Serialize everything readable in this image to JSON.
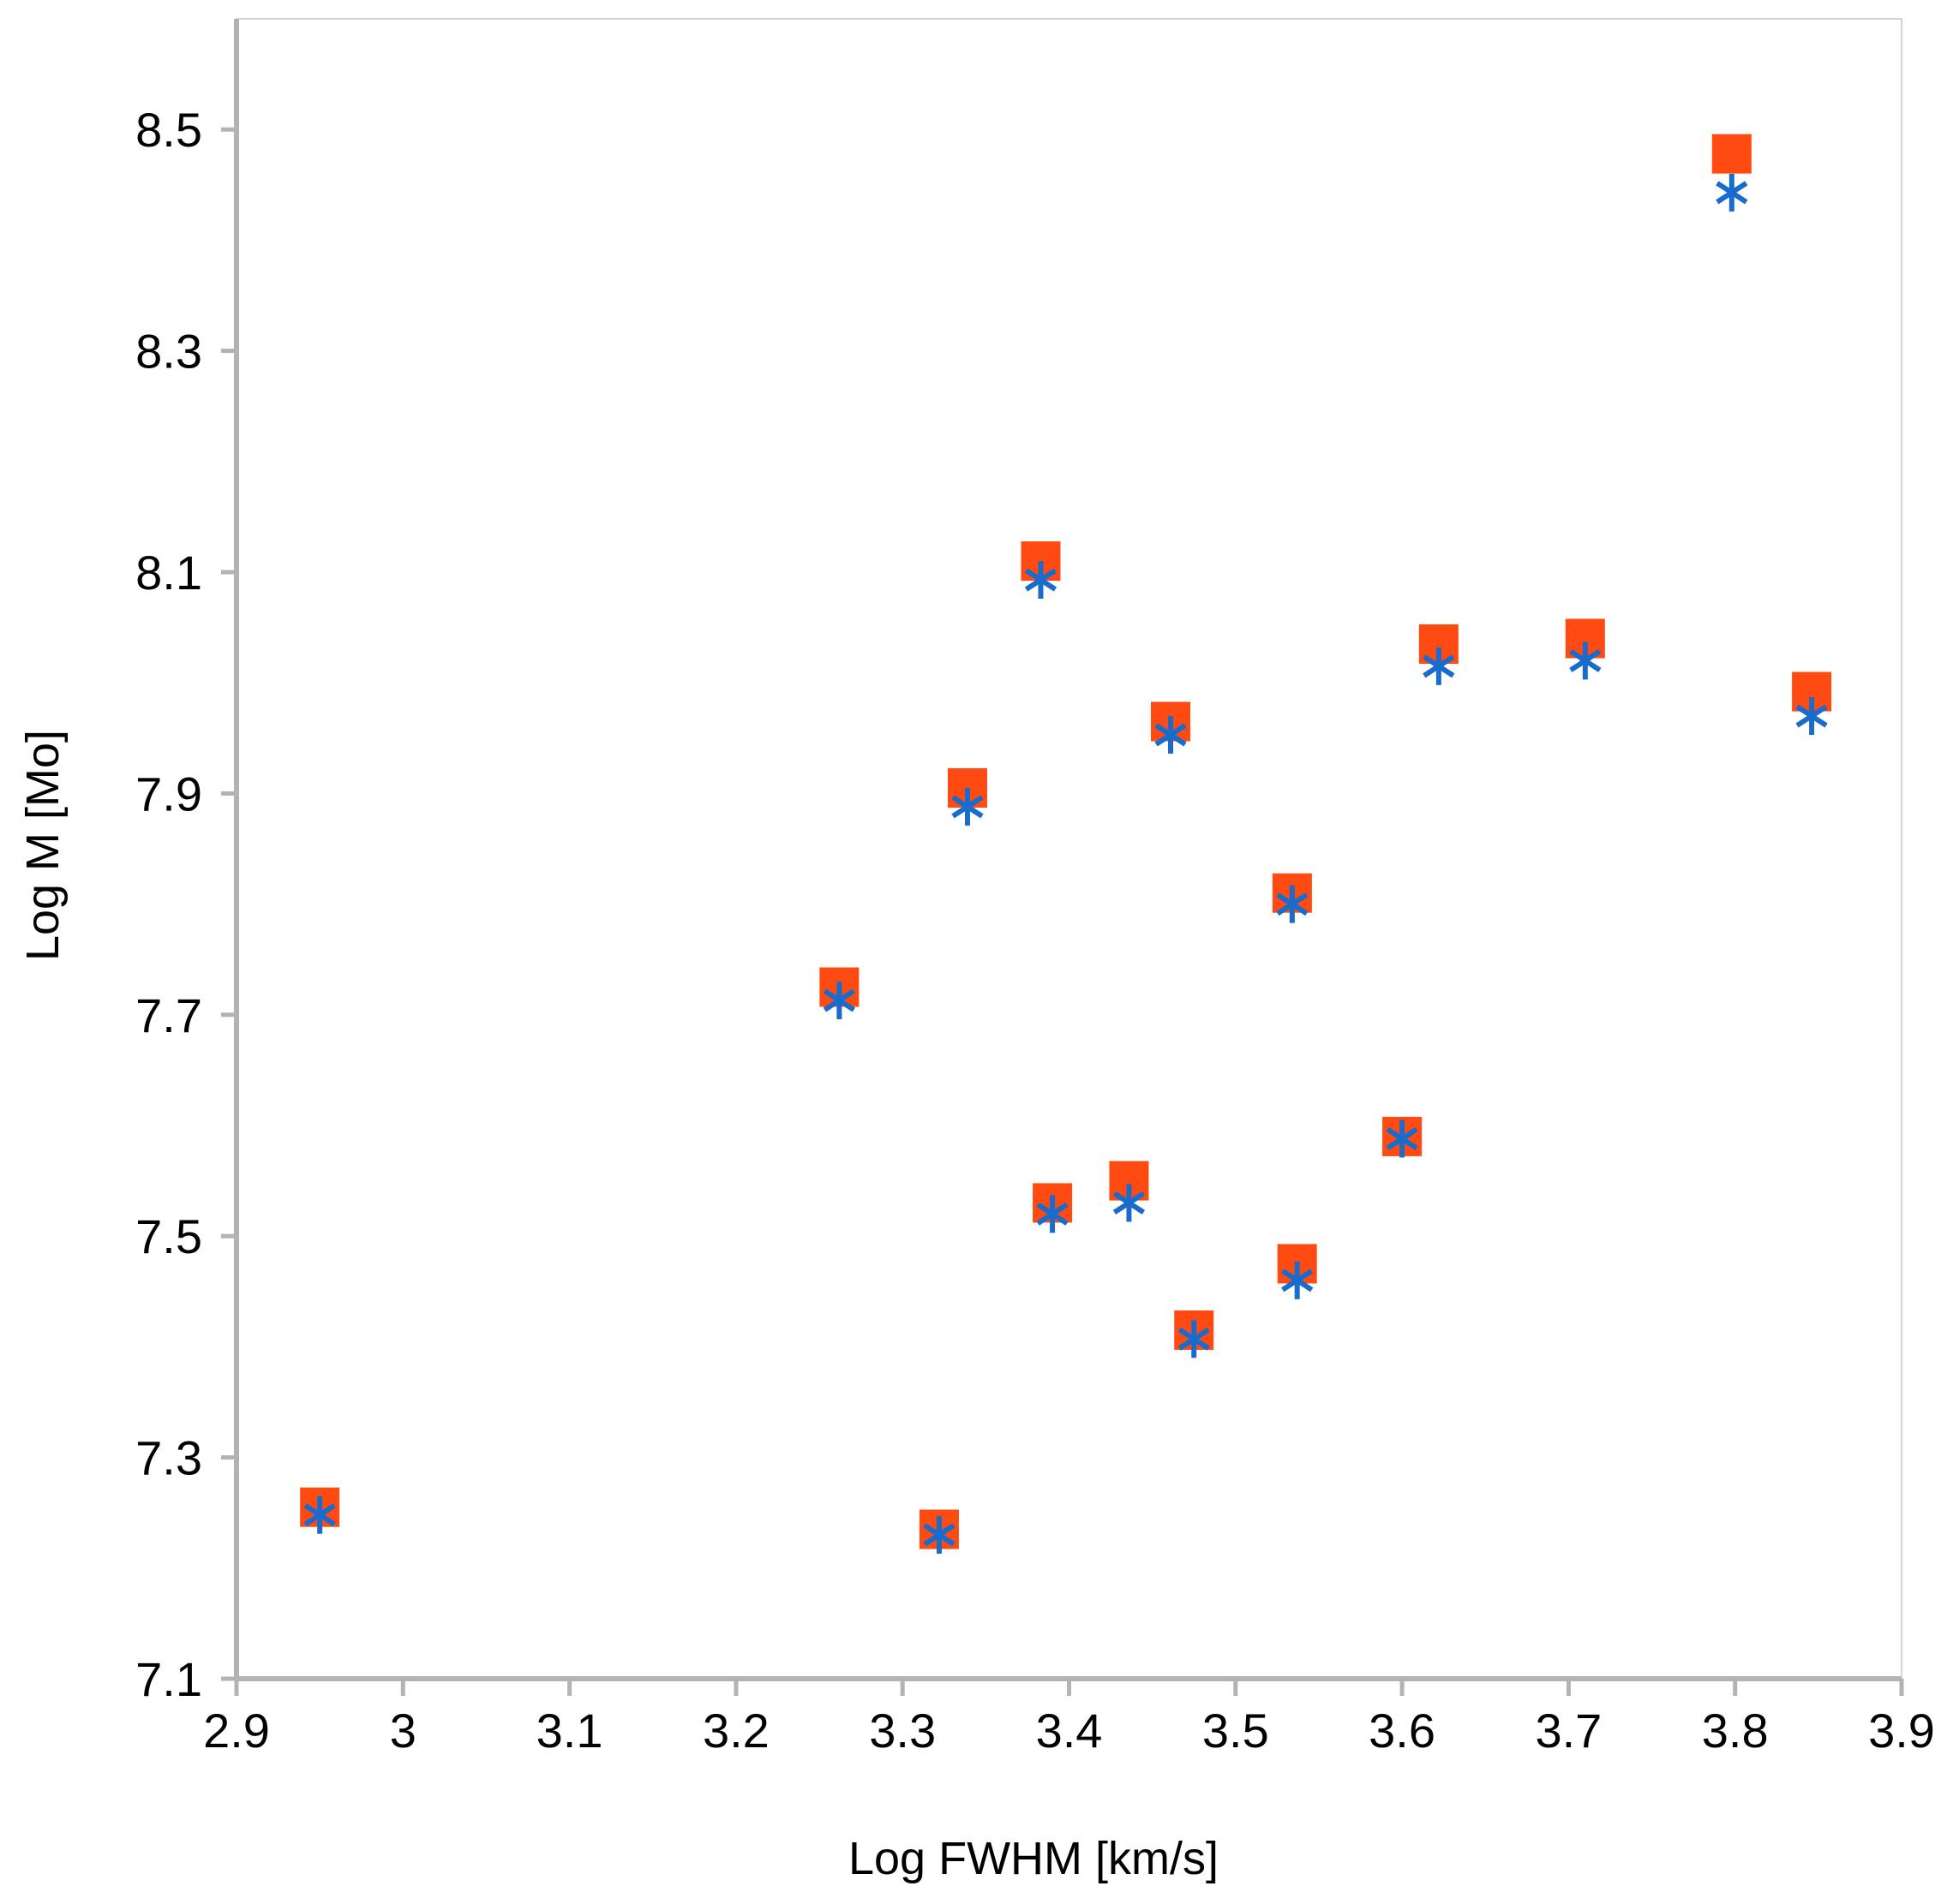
{
  "chart_data": {
    "type": "scatter",
    "title": "",
    "xlabel": "Log FWHM [km/s]",
    "ylabel": "Log M [Mo]",
    "xlim": [
      2.9,
      3.9
    ],
    "ylim": [
      7.1,
      8.6
    ],
    "x_ticks": [
      "2.9",
      "3",
      "3.1",
      "3.2",
      "3.3",
      "3.4",
      "3.5",
      "3.6",
      "3.7",
      "3.8",
      "3.9"
    ],
    "y_ticks": [
      "7.1",
      "7.3",
      "7.5",
      "7.7",
      "7.9",
      "8.1",
      "8.3",
      "8.5"
    ],
    "grid": false,
    "legend": "none",
    "series": [
      {
        "marker": "square",
        "color": "#ff4a12",
        "points": [
          {
            "x": 2.95,
            "y": 7.255
          },
          {
            "x": 3.262,
            "y": 7.725
          },
          {
            "x": 3.322,
            "y": 7.235
          },
          {
            "x": 3.339,
            "y": 7.905
          },
          {
            "x": 3.383,
            "y": 8.11
          },
          {
            "x": 3.39,
            "y": 7.53
          },
          {
            "x": 3.436,
            "y": 7.55
          },
          {
            "x": 3.461,
            "y": 7.965
          },
          {
            "x": 3.475,
            "y": 7.415
          },
          {
            "x": 3.534,
            "y": 7.81
          },
          {
            "x": 3.537,
            "y": 7.475
          },
          {
            "x": 3.6,
            "y": 7.59
          },
          {
            "x": 3.622,
            "y": 8.035
          },
          {
            "x": 3.71,
            "y": 8.04
          },
          {
            "x": 3.798,
            "y": 8.478
          },
          {
            "x": 3.846,
            "y": 7.992
          }
        ]
      },
      {
        "marker": "asterisk",
        "color": "#1a6ccc",
        "points": [
          {
            "x": 2.95,
            "y": 7.248
          },
          {
            "x": 3.262,
            "y": 7.713
          },
          {
            "x": 3.322,
            "y": 7.23
          },
          {
            "x": 3.339,
            "y": 7.888
          },
          {
            "x": 3.383,
            "y": 8.093
          },
          {
            "x": 3.39,
            "y": 7.52
          },
          {
            "x": 3.436,
            "y": 7.53
          },
          {
            "x": 3.461,
            "y": 7.953
          },
          {
            "x": 3.475,
            "y": 7.407
          },
          {
            "x": 3.534,
            "y": 7.8
          },
          {
            "x": 3.537,
            "y": 7.46
          },
          {
            "x": 3.6,
            "y": 7.588
          },
          {
            "x": 3.622,
            "y": 8.015
          },
          {
            "x": 3.71,
            "y": 8.02
          },
          {
            "x": 3.798,
            "y": 8.443
          },
          {
            "x": 3.846,
            "y": 7.97
          }
        ]
      }
    ]
  }
}
